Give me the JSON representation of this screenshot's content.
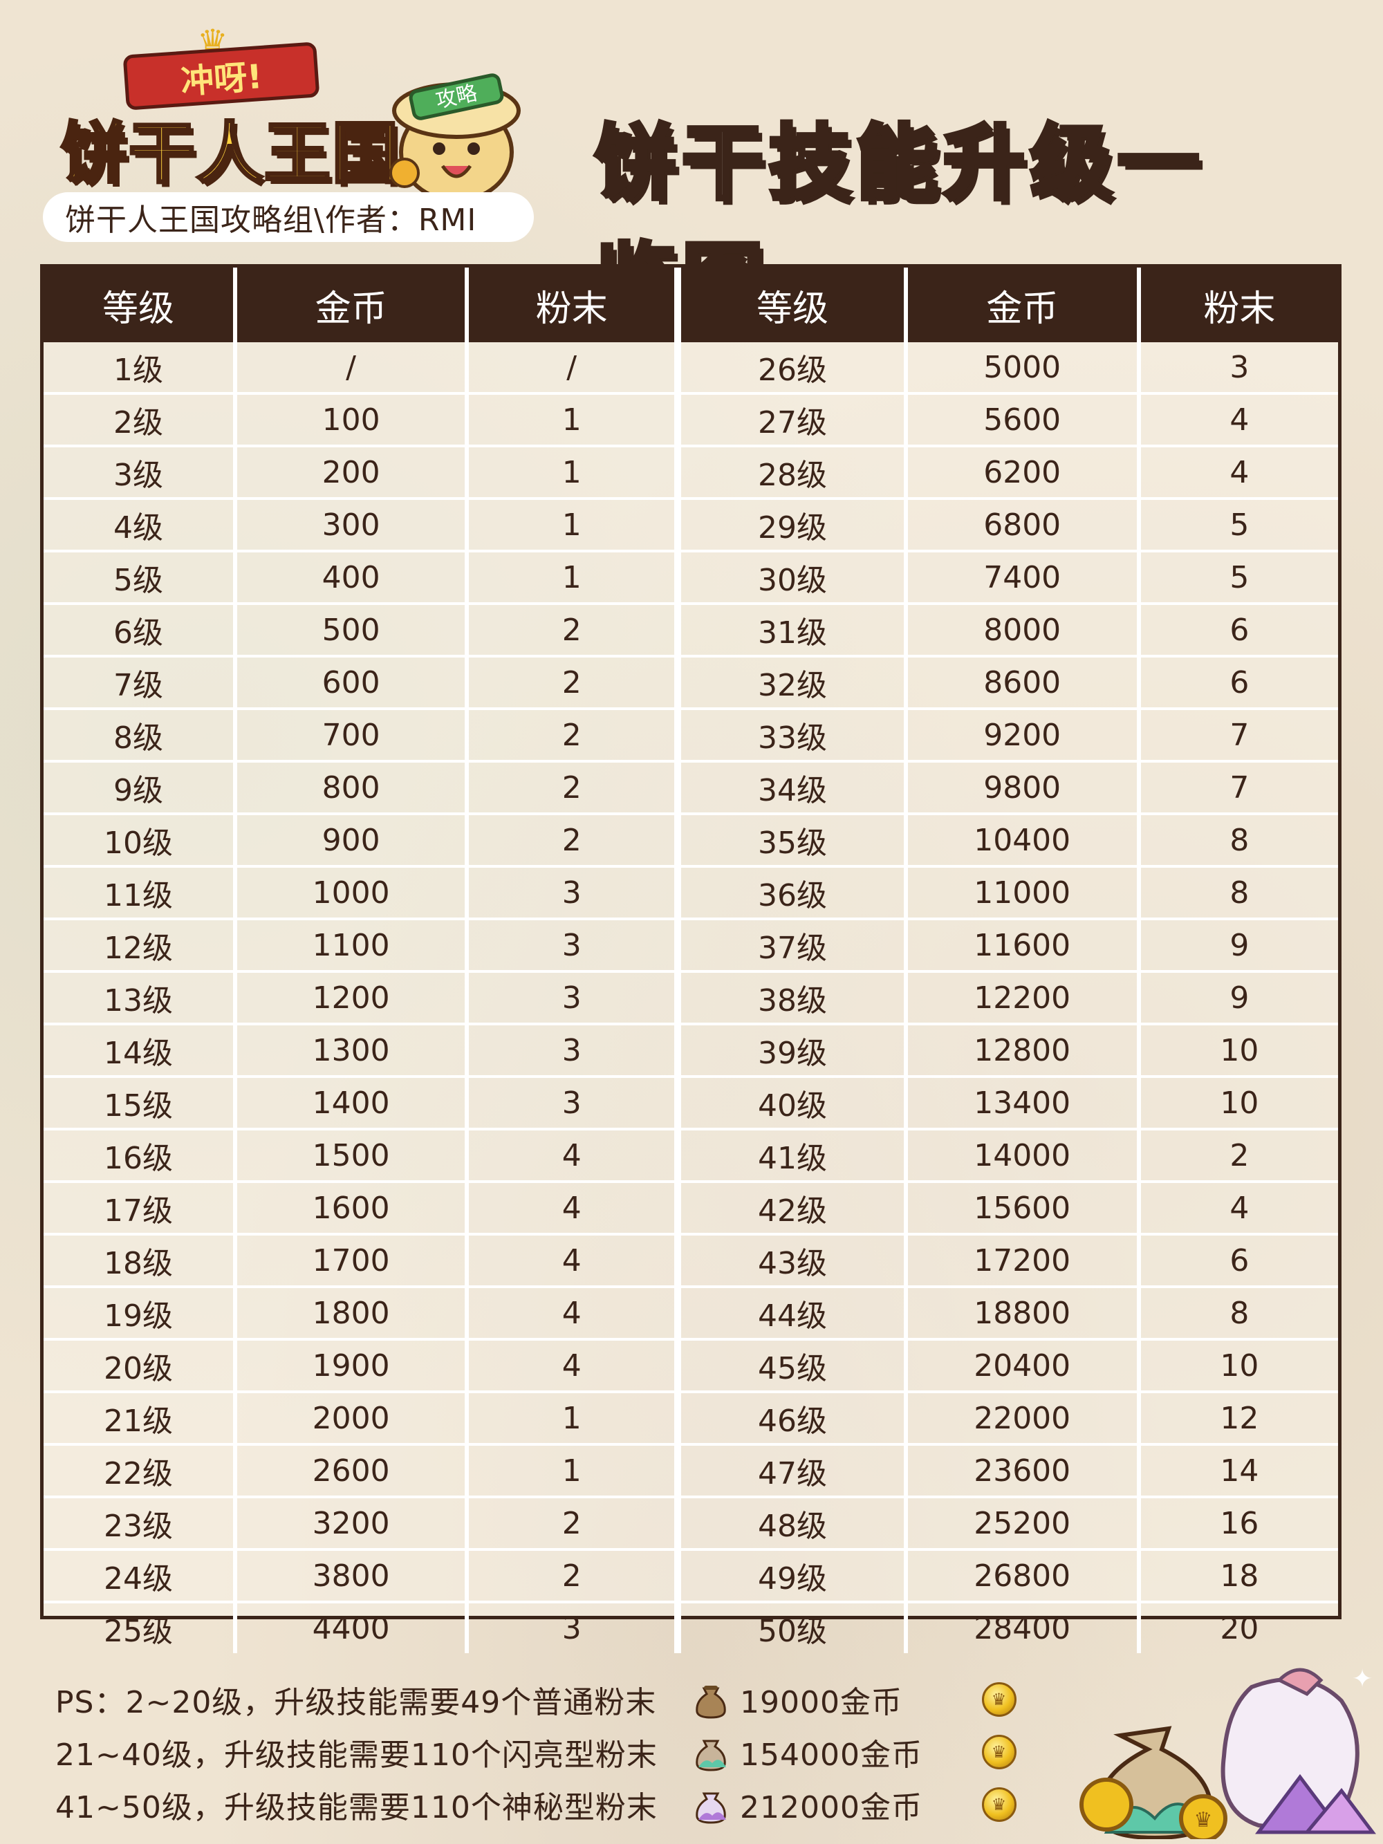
{
  "logo": {
    "ribbon": "冲呀!",
    "main": "饼干人王国",
    "mascot_tag": "攻略"
  },
  "title": "饼干技能升级一览图",
  "author": "饼干人王国攻略组\\作者：RMI",
  "table": {
    "headers": [
      "等级",
      "金币",
      "粉末",
      "等级",
      "金币",
      "粉末"
    ],
    "rows": [
      [
        "1级",
        "/",
        "/",
        "26级",
        "5000",
        "3"
      ],
      [
        "2级",
        "100",
        "1",
        "27级",
        "5600",
        "4"
      ],
      [
        "3级",
        "200",
        "1",
        "28级",
        "6200",
        "4"
      ],
      [
        "4级",
        "300",
        "1",
        "29级",
        "6800",
        "5"
      ],
      [
        "5级",
        "400",
        "1",
        "30级",
        "7400",
        "5"
      ],
      [
        "6级",
        "500",
        "2",
        "31级",
        "8000",
        "6"
      ],
      [
        "7级",
        "600",
        "2",
        "32级",
        "8600",
        "6"
      ],
      [
        "8级",
        "700",
        "2",
        "33级",
        "9200",
        "7"
      ],
      [
        "9级",
        "800",
        "2",
        "34级",
        "9800",
        "7"
      ],
      [
        "10级",
        "900",
        "2",
        "35级",
        "10400",
        "8"
      ],
      [
        "11级",
        "1000",
        "3",
        "36级",
        "11000",
        "8"
      ],
      [
        "12级",
        "1100",
        "3",
        "37级",
        "11600",
        "9"
      ],
      [
        "13级",
        "1200",
        "3",
        "38级",
        "12200",
        "9"
      ],
      [
        "14级",
        "1300",
        "3",
        "39级",
        "12800",
        "10"
      ],
      [
        "15级",
        "1400",
        "3",
        "40级",
        "13400",
        "10"
      ],
      [
        "16级",
        "1500",
        "4",
        "41级",
        "14000",
        "2"
      ],
      [
        "17级",
        "1600",
        "4",
        "42级",
        "15600",
        "4"
      ],
      [
        "18级",
        "1700",
        "4",
        "43级",
        "17200",
        "6"
      ],
      [
        "19级",
        "1800",
        "4",
        "44级",
        "18800",
        "8"
      ],
      [
        "20级",
        "1900",
        "4",
        "45级",
        "20400",
        "10"
      ],
      [
        "21级",
        "2000",
        "1",
        "46级",
        "22000",
        "12"
      ],
      [
        "22级",
        "2600",
        "1",
        "47级",
        "23600",
        "14"
      ],
      [
        "23级",
        "3200",
        "2",
        "48级",
        "25200",
        "16"
      ],
      [
        "24级",
        "3800",
        "2",
        "49级",
        "26800",
        "18"
      ],
      [
        "25级",
        "4400",
        "3",
        "50级",
        "28400",
        "20"
      ]
    ]
  },
  "notes": [
    {
      "text": "PS：2~20级，升级技能需要49个普通粉末",
      "coins": "19000金币",
      "bag_color": "#a88456",
      "powder_color": "#8a6a40"
    },
    {
      "text": "21~40级，升级技能需要110个闪亮型粉末",
      "coins": "154000金币",
      "bag_color": "#c8b49a",
      "powder_color": "#5ec8a8"
    },
    {
      "text": "41~50级，升级技能需要110个神秘型粉末",
      "coins": "212000金币",
      "bag_color": "#e6d8f0",
      "powder_color": "#b07ad8"
    }
  ]
}
